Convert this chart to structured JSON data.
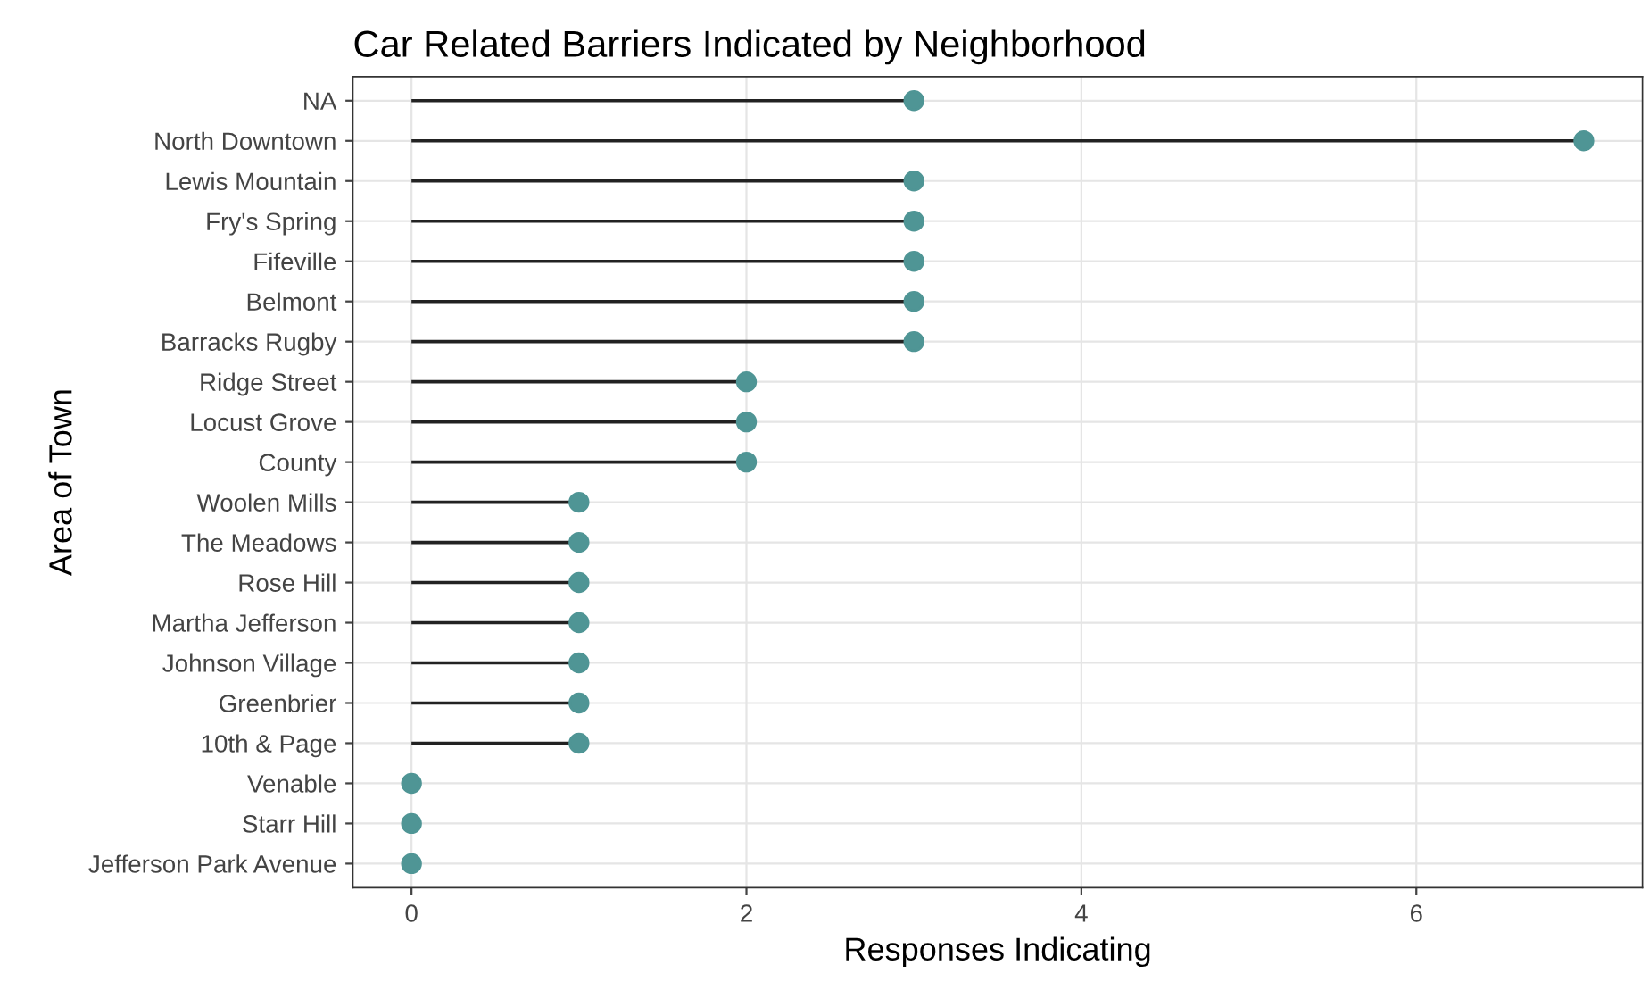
{
  "chart_data": {
    "type": "lollipop",
    "orientation": "horizontal",
    "title": "Car Related Barriers Indicated by Neighborhood",
    "xlabel": "Responses Indicating",
    "ylabel": "Area of Town",
    "categories": [
      "NA",
      "North Downtown",
      "Lewis Mountain",
      "Fry's Spring",
      "Fifeville",
      "Belmont",
      "Barracks Rugby",
      "Ridge Street",
      "Locust Grove",
      "County",
      "Woolen Mills",
      "The Meadows",
      "Rose Hill",
      "Martha Jefferson",
      "Johnson Village",
      "Greenbrier",
      "10th & Page",
      "Venable",
      "Starr Hill",
      "Jefferson Park Avenue"
    ],
    "values": [
      3,
      7,
      3,
      3,
      3,
      3,
      3,
      2,
      2,
      2,
      1,
      1,
      1,
      1,
      1,
      1,
      1,
      0,
      0,
      0
    ],
    "color": "#4f9595",
    "xlim": [
      -0.35,
      7.35
    ],
    "xticks": [
      0,
      2,
      4,
      6
    ],
    "grid": true,
    "marker": "circle"
  }
}
